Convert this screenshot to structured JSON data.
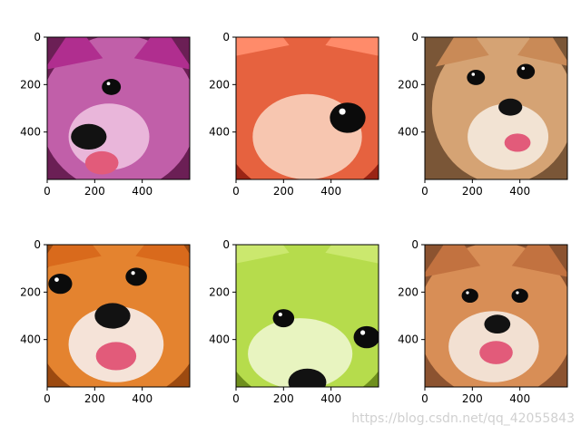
{
  "chart_data": [
    {
      "type": "image",
      "content": "dog-face-magenta-tint",
      "palette": {
        "base": "#c15fa9",
        "light": "#e9b6da",
        "dark": "#6b1f55",
        "accent": "#b02e8f"
      },
      "xticks": [
        "0",
        "200",
        "400"
      ],
      "yticks": [
        "0",
        "200",
        "400"
      ],
      "xlim": [
        0,
        600
      ],
      "ylim": [
        600,
        0
      ]
    },
    {
      "type": "image",
      "content": "dog-face-closeup-red-tint",
      "palette": {
        "base": "#e6623f",
        "light": "#f7c6b0",
        "dark": "#9a2415",
        "accent": "#ff8b6a"
      },
      "xticks": [
        "0",
        "200",
        "400"
      ],
      "yticks": [
        "0",
        "200",
        "400"
      ],
      "xlim": [
        0,
        600
      ],
      "ylim": [
        600,
        0
      ]
    },
    {
      "type": "image",
      "content": "dog-face-natural",
      "palette": {
        "base": "#d5a374",
        "light": "#f2e3d3",
        "dark": "#7a5637",
        "accent": "#c98a57"
      },
      "xticks": [
        "0",
        "200",
        "400"
      ],
      "yticks": [
        "0",
        "200",
        "400"
      ],
      "xlim": [
        0,
        600
      ],
      "ylim": [
        600,
        0
      ]
    },
    {
      "type": "image",
      "content": "dog-face-orange-closeup",
      "palette": {
        "base": "#e4832f",
        "light": "#f5e3d8",
        "dark": "#9c4a10",
        "accent": "#d96a1c"
      },
      "xticks": [
        "0",
        "200",
        "400"
      ],
      "yticks": [
        "0",
        "200",
        "400"
      ],
      "xlim": [
        0,
        600
      ],
      "ylim": [
        600,
        0
      ]
    },
    {
      "type": "image",
      "content": "dog-face-green-tint",
      "palette": {
        "base": "#b6dc4c",
        "light": "#e8f4c0",
        "dark": "#6f8f1d",
        "accent": "#cbe86e"
      },
      "xticks": [
        "0",
        "200",
        "400"
      ],
      "yticks": [
        "0",
        "200",
        "400"
      ],
      "xlim": [
        0,
        600
      ],
      "ylim": [
        600,
        0
      ]
    },
    {
      "type": "image",
      "content": "dog-face-natural-smile",
      "palette": {
        "base": "#d88e56",
        "light": "#f2e0d2",
        "dark": "#8c5330",
        "accent": "#c27240"
      },
      "xticks": [
        "0",
        "200",
        "400"
      ],
      "yticks": [
        "0",
        "200",
        "400"
      ],
      "xlim": [
        0,
        600
      ],
      "ylim": [
        600,
        0
      ]
    }
  ],
  "watermark": "https://blog.csdn.net/qq_42055843",
  "colors": {
    "eye": "#0b0b0b",
    "nose": "#121212",
    "tongue": "#e25b7a",
    "axis": "#000000"
  }
}
